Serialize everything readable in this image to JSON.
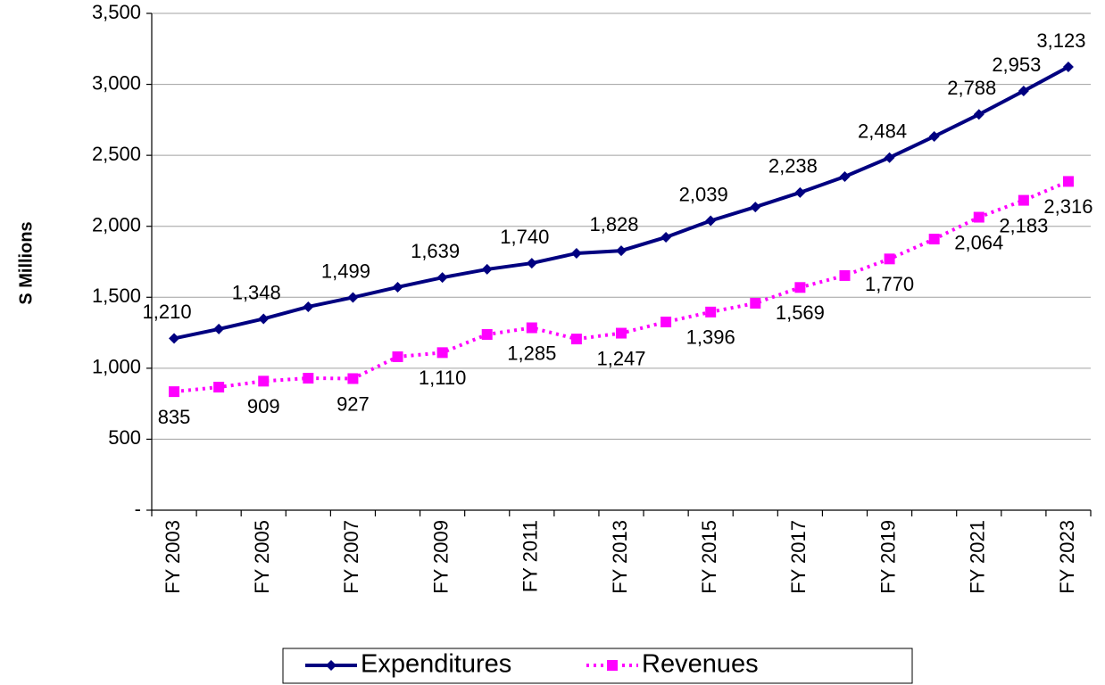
{
  "chart_data": {
    "type": "line",
    "y_label": "S Millions",
    "categories": [
      "FY 2003",
      null,
      "FY 2005",
      null,
      "FY 2007",
      null,
      "FY 2009",
      null,
      "FY 2011",
      null,
      "FY 2013",
      null,
      "FY 2015",
      null,
      "FY 2017",
      null,
      "FY 2019",
      null,
      "FY 2021",
      null,
      "FY 2023"
    ],
    "series": [
      {
        "name": "Expenditures",
        "color": "#000080",
        "marker": "diamond",
        "line_style": "solid",
        "values": [
          1210,
          1276,
          1348,
          1433,
          1499,
          1571,
          1639,
          1697,
          1740,
          1810,
          1828,
          1923,
          2039,
          2136,
          2238,
          2350,
          2484,
          2633,
          2788,
          2953,
          3123
        ],
        "value_labels": [
          "1,210",
          null,
          "1,348",
          null,
          "1,499",
          null,
          "1,639",
          null,
          "1,740",
          null,
          "1,828",
          null,
          "2,039",
          null,
          "2,238",
          null,
          "2,484",
          null,
          "2,788",
          "2,953",
          "3,123"
        ]
      },
      {
        "name": "Revenues",
        "color": "#ff00ff",
        "marker": "square",
        "line_style": "dotted",
        "values": [
          835,
          867,
          909,
          930,
          927,
          1081,
          1110,
          1238,
          1285,
          1206,
          1247,
          1326,
          1396,
          1458,
          1569,
          1653,
          1770,
          1910,
          2064,
          2183,
          2316
        ],
        "value_labels": [
          "835",
          null,
          "909",
          null,
          "927",
          null,
          "1,110",
          null,
          "1,285",
          null,
          "1,247",
          null,
          "1,396",
          null,
          "1,569",
          null,
          "1,770",
          null,
          "2,064",
          "2,183",
          "2,316"
        ]
      }
    ],
    "ylim": [
      0,
      3500
    ],
    "yticks": [
      {
        "value": 0,
        "label": "-"
      },
      500,
      {
        "value": 1000,
        "label": "1,000"
      },
      {
        "value": 1500,
        "label": "1,500"
      },
      {
        "value": 2000,
        "label": "2,000"
      },
      {
        "value": 2500,
        "label": "2,500"
      },
      {
        "value": 3000,
        "label": "3,000"
      },
      {
        "value": 3500,
        "label": "3,500"
      }
    ],
    "grid": true,
    "legend": "bottom"
  }
}
